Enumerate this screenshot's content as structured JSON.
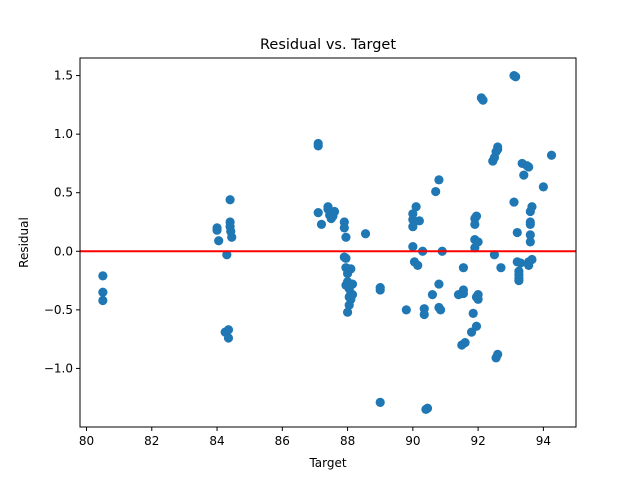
{
  "chart_data": {
    "type": "scatter",
    "title": "Residual vs. Target",
    "xlabel": "Target",
    "ylabel": "Residual",
    "xlim": [
      79.8,
      95.0
    ],
    "ylim": [
      -1.5,
      1.65
    ],
    "xticks": [
      80,
      82,
      84,
      86,
      88,
      90,
      92,
      94
    ],
    "yticks": [
      -1.0,
      -0.5,
      0.0,
      0.5,
      1.0,
      1.5
    ],
    "ytick_labels": [
      "−1.0",
      "−0.5",
      "0.0",
      "0.5",
      "1.0",
      "1.5"
    ],
    "grid": false,
    "legend": "none",
    "reference_line": {
      "y": 0,
      "color": "#ff0000"
    },
    "marker_color": "#1f77b4",
    "points": [
      [
        80.5,
        -0.21
      ],
      [
        80.5,
        -0.35
      ],
      [
        80.5,
        -0.42
      ],
      [
        84.0,
        0.2
      ],
      [
        84.0,
        0.18
      ],
      [
        84.05,
        0.09
      ],
      [
        84.25,
        -0.69
      ],
      [
        84.3,
        -0.03
      ],
      [
        84.35,
        -0.67
      ],
      [
        84.35,
        -0.74
      ],
      [
        84.4,
        0.25
      ],
      [
        84.4,
        0.21
      ],
      [
        84.42,
        0.17
      ],
      [
        84.45,
        0.12
      ],
      [
        84.4,
        0.44
      ],
      [
        87.1,
        0.92
      ],
      [
        87.1,
        0.9
      ],
      [
        87.1,
        0.33
      ],
      [
        87.2,
        0.23
      ],
      [
        87.4,
        0.38
      ],
      [
        87.4,
        0.36
      ],
      [
        87.45,
        0.31
      ],
      [
        87.5,
        0.28
      ],
      [
        87.6,
        0.34
      ],
      [
        87.55,
        0.3
      ],
      [
        87.9,
        0.25
      ],
      [
        87.9,
        0.2
      ],
      [
        87.95,
        0.12
      ],
      [
        87.9,
        -0.05
      ],
      [
        87.95,
        -0.06
      ],
      [
        87.95,
        -0.14
      ],
      [
        88.0,
        -0.19
      ],
      [
        88.0,
        -0.26
      ],
      [
        87.95,
        -0.29
      ],
      [
        88.05,
        -0.32
      ],
      [
        88.1,
        -0.36
      ],
      [
        88.05,
        -0.39
      ],
      [
        88.1,
        -0.41
      ],
      [
        88.05,
        -0.46
      ],
      [
        88.0,
        -0.52
      ],
      [
        88.1,
        -0.15
      ],
      [
        88.15,
        -0.28
      ],
      [
        88.15,
        -0.37
      ],
      [
        88.55,
        0.15
      ],
      [
        89.0,
        -0.31
      ],
      [
        89.0,
        -0.33
      ],
      [
        89.0,
        -1.29
      ],
      [
        89.8,
        -0.5
      ],
      [
        90.0,
        0.04
      ],
      [
        90.0,
        0.21
      ],
      [
        90.0,
        0.27
      ],
      [
        90.0,
        0.32
      ],
      [
        90.05,
        -0.09
      ],
      [
        90.1,
        0.38
      ],
      [
        90.15,
        -0.12
      ],
      [
        90.2,
        0.26
      ],
      [
        90.3,
        0.0
      ],
      [
        90.35,
        -0.49
      ],
      [
        90.35,
        -0.54
      ],
      [
        90.4,
        -1.35
      ],
      [
        90.45,
        -1.34
      ],
      [
        90.6,
        -0.37
      ],
      [
        90.7,
        0.51
      ],
      [
        90.8,
        0.61
      ],
      [
        90.8,
        -0.28
      ],
      [
        90.8,
        -0.48
      ],
      [
        90.85,
        -0.5
      ],
      [
        90.9,
        0.0
      ],
      [
        91.4,
        -0.37
      ],
      [
        91.55,
        -0.36
      ],
      [
        91.55,
        -0.33
      ],
      [
        91.55,
        -0.14
      ],
      [
        91.5,
        -0.8
      ],
      [
        91.6,
        -0.78
      ],
      [
        91.8,
        -0.69
      ],
      [
        91.85,
        -0.53
      ],
      [
        91.9,
        0.03
      ],
      [
        91.9,
        0.1
      ],
      [
        91.9,
        0.23
      ],
      [
        91.9,
        0.28
      ],
      [
        91.95,
        0.3
      ],
      [
        91.95,
        -0.39
      ],
      [
        92.0,
        -0.37
      ],
      [
        92.0,
        -0.41
      ],
      [
        91.95,
        -0.64
      ],
      [
        92.0,
        0.08
      ],
      [
        92.1,
        1.31
      ],
      [
        92.15,
        1.29
      ],
      [
        92.45,
        0.77
      ],
      [
        92.5,
        0.8
      ],
      [
        92.55,
        0.85
      ],
      [
        92.6,
        0.87
      ],
      [
        92.6,
        0.89
      ],
      [
        92.5,
        -0.03
      ],
      [
        92.55,
        -0.91
      ],
      [
        92.6,
        -0.88
      ],
      [
        92.7,
        -0.14
      ],
      [
        93.1,
        1.5
      ],
      [
        93.15,
        1.49
      ],
      [
        93.1,
        0.42
      ],
      [
        93.2,
        0.16
      ],
      [
        93.2,
        -0.09
      ],
      [
        93.25,
        -0.17
      ],
      [
        93.25,
        -0.2
      ],
      [
        93.25,
        -0.23
      ],
      [
        93.25,
        -0.25
      ],
      [
        93.3,
        -0.1
      ],
      [
        93.35,
        0.75
      ],
      [
        93.4,
        0.65
      ],
      [
        93.5,
        0.73
      ],
      [
        93.55,
        0.72
      ],
      [
        93.55,
        -0.09
      ],
      [
        93.55,
        -0.12
      ],
      [
        93.6,
        0.34
      ],
      [
        93.6,
        0.25
      ],
      [
        93.6,
        0.23
      ],
      [
        93.6,
        0.14
      ],
      [
        93.6,
        0.08
      ],
      [
        93.65,
        -0.07
      ],
      [
        93.65,
        0.38
      ],
      [
        94.0,
        0.55
      ],
      [
        94.25,
        0.82
      ]
    ]
  }
}
